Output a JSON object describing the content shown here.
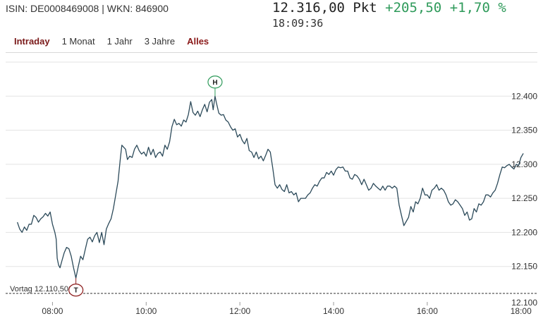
{
  "header": {
    "isin_wkn": "ISIN: DE0008469008 | WKN: 846900",
    "price": "12.316,00 Pkt",
    "change_abs": "+205,50",
    "change_pct": "+1,70 %",
    "time": "18:09:36"
  },
  "tabs": [
    {
      "label": "Intraday",
      "active": true
    },
    {
      "label": "1 Monat",
      "active": false
    },
    {
      "label": "1 Jahr",
      "active": false
    },
    {
      "label": "3 Jahre",
      "active": false
    },
    {
      "label": "Alles",
      "active": false
    }
  ],
  "colors": {
    "line": "#2c4a5a",
    "grid": "#e3e3e3",
    "high_marker": "#2e9a5a",
    "low_marker": "#8b1a1a",
    "change_positive": "#2e9a5a"
  },
  "chart_data": {
    "type": "line",
    "x_unit": "time of day (hours)",
    "xlim": [
      7.0,
      18.35
    ],
    "ylim": [
      12100,
      12450
    ],
    "x_ticks": [
      {
        "value": 8,
        "label": "08:00"
      },
      {
        "value": 10,
        "label": "10:00"
      },
      {
        "value": 12,
        "label": "12:00"
      },
      {
        "value": 14,
        "label": "14:00"
      },
      {
        "value": 16,
        "label": "16:00"
      },
      {
        "value": 18,
        "label": "18:00"
      }
    ],
    "y_ticks": [
      {
        "value": 12150,
        "label": "12.150"
      },
      {
        "value": 12200,
        "label": "12.200"
      },
      {
        "value": 12250,
        "label": "12.250"
      },
      {
        "value": 12300,
        "label": "12.300"
      },
      {
        "value": 12350,
        "label": "12.350"
      },
      {
        "value": 12400,
        "label": "12.400"
      }
    ],
    "y_tick_bottom": {
      "value": 12100,
      "label": "12.100"
    },
    "grid": true,
    "reference_line": {
      "value": 12110.5,
      "label": "Vortag 12.110,500"
    },
    "high_marker": {
      "label": "H",
      "x": 11.47,
      "y": 12400
    },
    "low_marker": {
      "label": "T",
      "x": 8.5,
      "y": 12133
    },
    "points": [
      [
        7.25,
        12215
      ],
      [
        7.3,
        12205
      ],
      [
        7.35,
        12200
      ],
      [
        7.4,
        12208
      ],
      [
        7.45,
        12203
      ],
      [
        7.5,
        12212
      ],
      [
        7.55,
        12212
      ],
      [
        7.6,
        12225
      ],
      [
        7.65,
        12222
      ],
      [
        7.7,
        12215
      ],
      [
        7.75,
        12220
      ],
      [
        7.8,
        12223
      ],
      [
        7.85,
        12228
      ],
      [
        7.9,
        12224
      ],
      [
        7.95,
        12230
      ],
      [
        8.0,
        12212
      ],
      [
        8.05,
        12200
      ],
      [
        8.08,
        12190
      ],
      [
        8.1,
        12162
      ],
      [
        8.13,
        12152
      ],
      [
        8.16,
        12148
      ],
      [
        8.2,
        12158
      ],
      [
        8.25,
        12170
      ],
      [
        8.3,
        12178
      ],
      [
        8.35,
        12176
      ],
      [
        8.4,
        12165
      ],
      [
        8.45,
        12148
      ],
      [
        8.5,
        12133
      ],
      [
        8.55,
        12150
      ],
      [
        8.6,
        12165
      ],
      [
        8.65,
        12160
      ],
      [
        8.7,
        12175
      ],
      [
        8.75,
        12190
      ],
      [
        8.8,
        12193
      ],
      [
        8.85,
        12186
      ],
      [
        8.9,
        12195
      ],
      [
        8.95,
        12200
      ],
      [
        9.0,
        12185
      ],
      [
        9.05,
        12200
      ],
      [
        9.1,
        12182
      ],
      [
        9.15,
        12205
      ],
      [
        9.2,
        12213
      ],
      [
        9.25,
        12220
      ],
      [
        9.3,
        12235
      ],
      [
        9.35,
        12255
      ],
      [
        9.4,
        12275
      ],
      [
        9.45,
        12310
      ],
      [
        9.48,
        12328
      ],
      [
        9.52,
        12325
      ],
      [
        9.56,
        12322
      ],
      [
        9.6,
        12307
      ],
      [
        9.65,
        12312
      ],
      [
        9.7,
        12310
      ],
      [
        9.75,
        12322
      ],
      [
        9.8,
        12328
      ],
      [
        9.85,
        12320
      ],
      [
        9.9,
        12315
      ],
      [
        9.95,
        12318
      ],
      [
        10.0,
        12312
      ],
      [
        10.05,
        12325
      ],
      [
        10.1,
        12314
      ],
      [
        10.15,
        12322
      ],
      [
        10.2,
        12310
      ],
      [
        10.25,
        12316
      ],
      [
        10.3,
        12318
      ],
      [
        10.35,
        12312
      ],
      [
        10.4,
        12328
      ],
      [
        10.45,
        12322
      ],
      [
        10.5,
        12333
      ],
      [
        10.55,
        12355
      ],
      [
        10.6,
        12366
      ],
      [
        10.65,
        12358
      ],
      [
        10.7,
        12360
      ],
      [
        10.75,
        12356
      ],
      [
        10.8,
        12365
      ],
      [
        10.85,
        12362
      ],
      [
        10.9,
        12373
      ],
      [
        10.95,
        12392
      ],
      [
        11.0,
        12376
      ],
      [
        11.05,
        12372
      ],
      [
        11.1,
        12378
      ],
      [
        11.15,
        12370
      ],
      [
        11.2,
        12380
      ],
      [
        11.25,
        12388
      ],
      [
        11.3,
        12377
      ],
      [
        11.35,
        12391
      ],
      [
        11.4,
        12395
      ],
      [
        11.43,
        12380
      ],
      [
        11.47,
        12400
      ],
      [
        11.5,
        12390
      ],
      [
        11.55,
        12375
      ],
      [
        11.6,
        12372
      ],
      [
        11.65,
        12373
      ],
      [
        11.7,
        12365
      ],
      [
        11.75,
        12362
      ],
      [
        11.8,
        12355
      ],
      [
        11.85,
        12350
      ],
      [
        11.9,
        12352
      ],
      [
        11.95,
        12340
      ],
      [
        12.0,
        12344
      ],
      [
        12.05,
        12335
      ],
      [
        12.1,
        12330
      ],
      [
        12.15,
        12338
      ],
      [
        12.2,
        12320
      ],
      [
        12.25,
        12318
      ],
      [
        12.3,
        12310
      ],
      [
        12.35,
        12318
      ],
      [
        12.4,
        12308
      ],
      [
        12.45,
        12312
      ],
      [
        12.5,
        12305
      ],
      [
        12.55,
        12313
      ],
      [
        12.6,
        12322
      ],
      [
        12.65,
        12318
      ],
      [
        12.7,
        12295
      ],
      [
        12.75,
        12270
      ],
      [
        12.8,
        12265
      ],
      [
        12.85,
        12270
      ],
      [
        12.9,
        12263
      ],
      [
        12.95,
        12260
      ],
      [
        13.0,
        12270
      ],
      [
        13.05,
        12258
      ],
      [
        13.1,
        12260
      ],
      [
        13.15,
        12255
      ],
      [
        13.2,
        12258
      ],
      [
        13.25,
        12245
      ],
      [
        13.3,
        12250
      ],
      [
        13.35,
        12250
      ],
      [
        13.4,
        12250
      ],
      [
        13.45,
        12255
      ],
      [
        13.5,
        12258
      ],
      [
        13.55,
        12265
      ],
      [
        13.6,
        12270
      ],
      [
        13.65,
        12268
      ],
      [
        13.7,
        12275
      ],
      [
        13.75,
        12280
      ],
      [
        13.8,
        12280
      ],
      [
        13.85,
        12288
      ],
      [
        13.9,
        12285
      ],
      [
        13.95,
        12290
      ],
      [
        14.0,
        12284
      ],
      [
        14.05,
        12292
      ],
      [
        14.1,
        12296
      ],
      [
        14.15,
        12295
      ],
      [
        14.2,
        12296
      ],
      [
        14.25,
        12290
      ],
      [
        14.3,
        12290
      ],
      [
        14.35,
        12280
      ],
      [
        14.4,
        12278
      ],
      [
        14.45,
        12285
      ],
      [
        14.5,
        12283
      ],
      [
        14.55,
        12278
      ],
      [
        14.6,
        12270
      ],
      [
        14.65,
        12278
      ],
      [
        14.7,
        12270
      ],
      [
        14.75,
        12262
      ],
      [
        14.8,
        12265
      ],
      [
        14.85,
        12272
      ],
      [
        14.9,
        12268
      ],
      [
        14.95,
        12265
      ],
      [
        15.0,
        12262
      ],
      [
        15.05,
        12268
      ],
      [
        15.1,
        12262
      ],
      [
        15.15,
        12268
      ],
      [
        15.2,
        12268
      ],
      [
        15.25,
        12265
      ],
      [
        15.3,
        12268
      ],
      [
        15.35,
        12265
      ],
      [
        15.4,
        12240
      ],
      [
        15.45,
        12225
      ],
      [
        15.5,
        12210
      ],
      [
        15.55,
        12216
      ],
      [
        15.6,
        12222
      ],
      [
        15.65,
        12238
      ],
      [
        15.7,
        12230
      ],
      [
        15.75,
        12245
      ],
      [
        15.8,
        12242
      ],
      [
        15.85,
        12250
      ],
      [
        15.9,
        12265
      ],
      [
        15.95,
        12255
      ],
      [
        16.0,
        12255
      ],
      [
        16.05,
        12250
      ],
      [
        16.1,
        12262
      ],
      [
        16.15,
        12265
      ],
      [
        16.2,
        12270
      ],
      [
        16.25,
        12262
      ],
      [
        16.3,
        12265
      ],
      [
        16.35,
        12262
      ],
      [
        16.4,
        12255
      ],
      [
        16.45,
        12245
      ],
      [
        16.5,
        12240
      ],
      [
        16.55,
        12242
      ],
      [
        16.6,
        12248
      ],
      [
        16.65,
        12245
      ],
      [
        16.7,
        12240
      ],
      [
        16.75,
        12235
      ],
      [
        16.8,
        12225
      ],
      [
        16.85,
        12230
      ],
      [
        16.9,
        12218
      ],
      [
        16.95,
        12220
      ],
      [
        17.0,
        12235
      ],
      [
        17.05,
        12230
      ],
      [
        17.1,
        12242
      ],
      [
        17.15,
        12240
      ],
      [
        17.2,
        12245
      ],
      [
        17.25,
        12255
      ],
      [
        17.3,
        12255
      ],
      [
        17.35,
        12252
      ],
      [
        17.4,
        12258
      ],
      [
        17.45,
        12262
      ],
      [
        17.5,
        12272
      ],
      [
        17.55,
        12285
      ],
      [
        17.6,
        12296
      ],
      [
        17.65,
        12295
      ],
      [
        17.7,
        12298
      ],
      [
        17.75,
        12300
      ],
      [
        17.8,
        12296
      ],
      [
        17.85,
        12293
      ],
      [
        17.9,
        12300
      ],
      [
        17.95,
        12298
      ],
      [
        18.0,
        12310
      ],
      [
        18.05,
        12316
      ]
    ]
  }
}
